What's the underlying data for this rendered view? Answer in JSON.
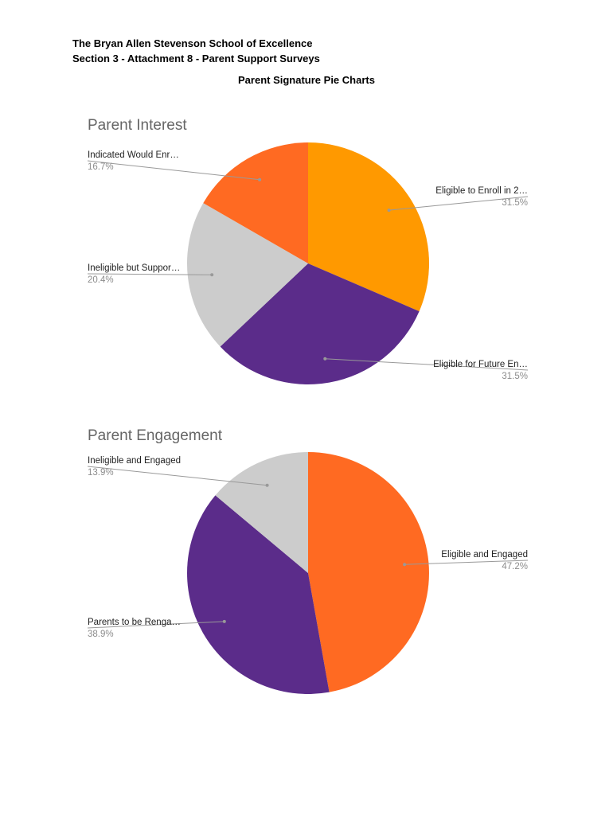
{
  "document": {
    "title_line1": "The Bryan Allen Stevenson School of Excellence",
    "title_line2": "Section 3 - Attachment 8 - Parent Support Surveys",
    "subtitle": "Parent Signature Pie Charts"
  },
  "chart_data": [
    {
      "type": "pie",
      "title": "Parent Interest",
      "slices": [
        {
          "label": "Eligible to Enroll in 2…",
          "value": 31.5,
          "display": "31.5%",
          "color": "#ff9900"
        },
        {
          "label": "Eligible for Future En…",
          "value": 31.5,
          "display": "31.5%",
          "color": "#5b2c8a"
        },
        {
          "label": "Ineligible but Suppor…",
          "value": 20.4,
          "display": "20.4%",
          "color": "#cccccc"
        },
        {
          "label": "Indicated Would Enr…",
          "value": 16.7,
          "display": "16.7%",
          "color": "#ff6a22"
        }
      ]
    },
    {
      "type": "pie",
      "title": "Parent Engagement",
      "slices": [
        {
          "label": "Eligible and Engaged",
          "value": 47.2,
          "display": "47.2%",
          "color": "#ff6a22"
        },
        {
          "label": "Parents to be Renga…",
          "value": 38.9,
          "display": "38.9%",
          "color": "#5b2c8a"
        },
        {
          "label": "Ineligible and Engaged",
          "value": 13.9,
          "display": "13.9%",
          "color": "#cccccc"
        }
      ]
    }
  ]
}
